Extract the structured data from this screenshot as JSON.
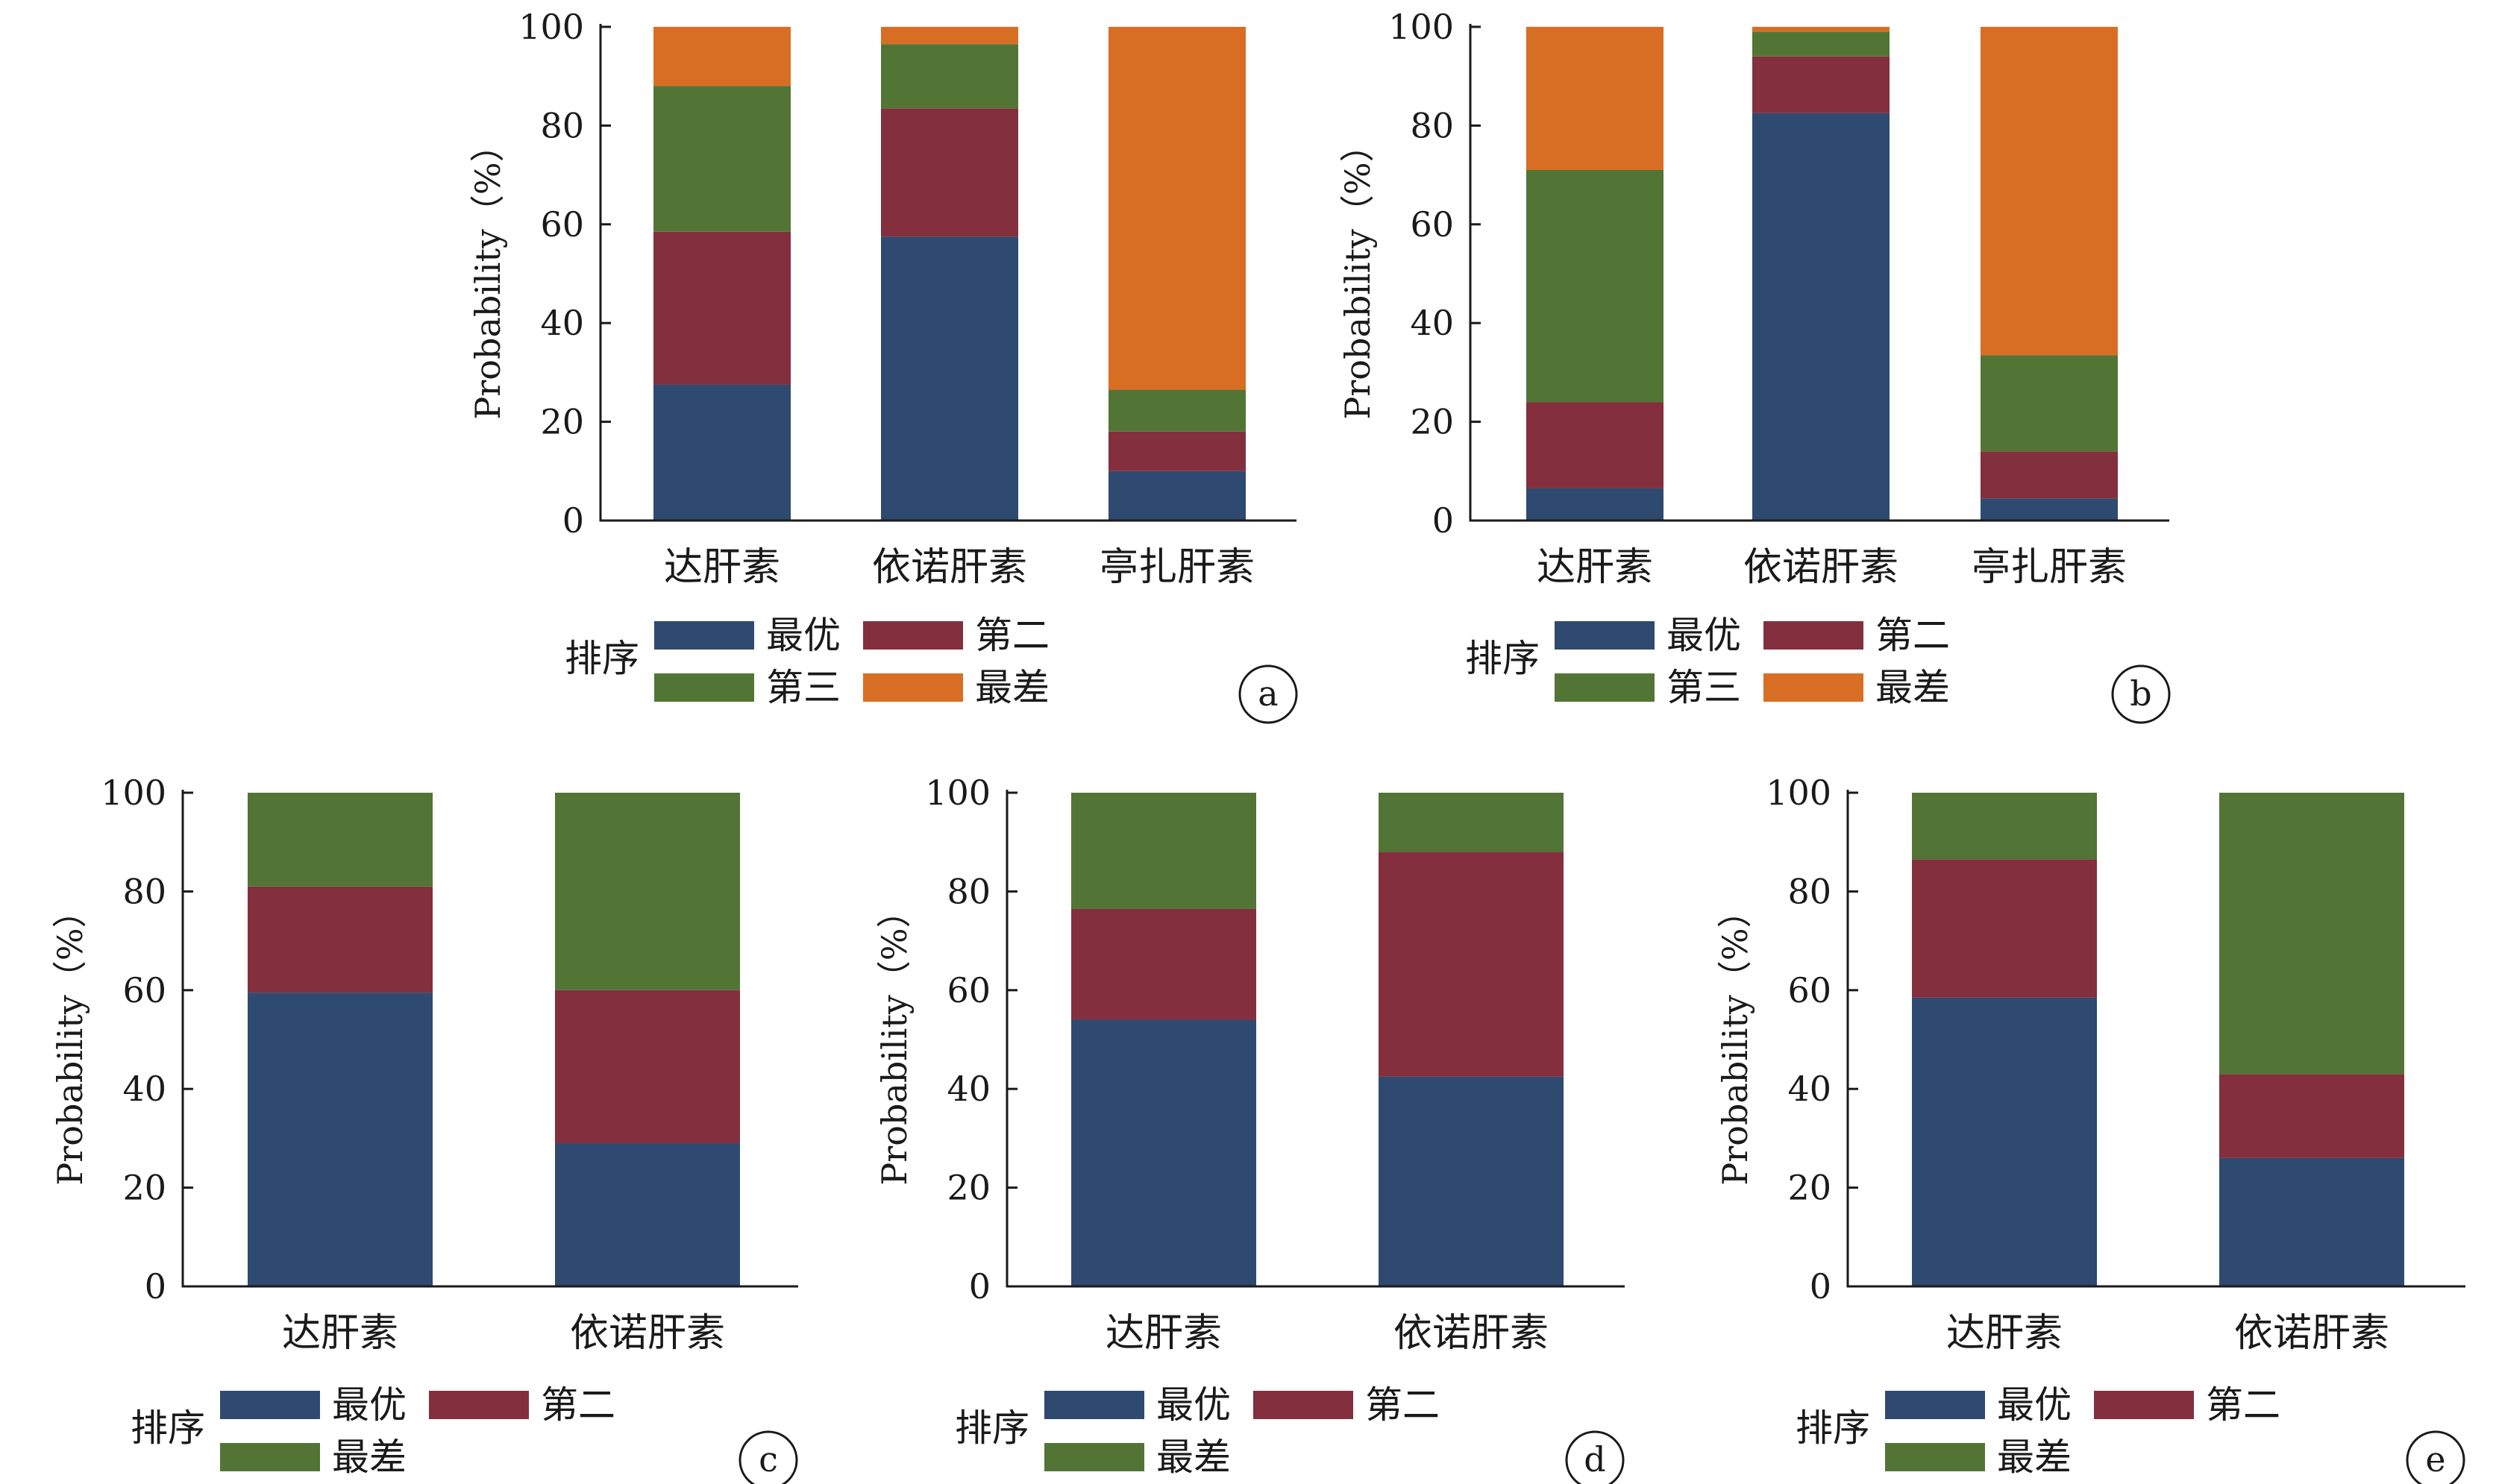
{
  "colors": {
    "best": "#2f4a70",
    "second": "#832f3e",
    "third": "#527536",
    "worst": "#d86e24",
    "axis": "#1a1a1a"
  },
  "chart_data": [
    {
      "type": "bar",
      "stacked": true,
      "panel_label": "a",
      "categories": [
        "达肝素",
        "依诺肝素",
        "亭扎肝素"
      ],
      "ylabel": "Probability（%）",
      "ylim": [
        0,
        100
      ],
      "yticks": [
        0,
        20,
        40,
        60,
        80,
        100
      ],
      "legend_title": "排序",
      "series": [
        {
          "name": "最优",
          "color": "#2f4a70",
          "values": [
            27.5,
            57.5,
            10.0
          ]
        },
        {
          "name": "第二",
          "color": "#832f3e",
          "values": [
            31.0,
            26.0,
            8.0
          ]
        },
        {
          "name": "第三",
          "color": "#527536",
          "values": [
            29.5,
            13.0,
            8.5
          ]
        },
        {
          "name": "最差",
          "color": "#d86e24",
          "values": [
            12.0,
            3.5,
            73.5
          ]
        }
      ]
    },
    {
      "type": "bar",
      "stacked": true,
      "panel_label": "b",
      "categories": [
        "达肝素",
        "依诺肝素",
        "亭扎肝素"
      ],
      "ylabel": "Probability（%）",
      "ylim": [
        0,
        100
      ],
      "yticks": [
        0,
        20,
        40,
        60,
        80,
        100
      ],
      "legend_title": "排序",
      "series": [
        {
          "name": "最优",
          "color": "#2f4a70",
          "values": [
            6.5,
            82.5,
            4.5
          ]
        },
        {
          "name": "第二",
          "color": "#832f3e",
          "values": [
            17.5,
            11.5,
            9.5
          ]
        },
        {
          "name": "第三",
          "color": "#527536",
          "values": [
            47.0,
            5.0,
            19.5
          ]
        },
        {
          "name": "最差",
          "color": "#d86e24",
          "values": [
            29.0,
            1.0,
            66.5
          ]
        }
      ]
    },
    {
      "type": "bar",
      "stacked": true,
      "panel_label": "c",
      "categories": [
        "达肝素",
        "依诺肝素"
      ],
      "ylabel": "Probability（%）",
      "ylim": [
        0,
        100
      ],
      "yticks": [
        0,
        20,
        40,
        60,
        80,
        100
      ],
      "legend_title": "排序",
      "series": [
        {
          "name": "最优",
          "color": "#2f4a70",
          "values": [
            59.5,
            29.0
          ]
        },
        {
          "name": "第二",
          "color": "#832f3e",
          "values": [
            21.5,
            31.0
          ]
        },
        {
          "name": "最差",
          "color": "#527536",
          "values": [
            19.0,
            40.0
          ]
        }
      ]
    },
    {
      "type": "bar",
      "stacked": true,
      "panel_label": "d",
      "categories": [
        "达肝素",
        "依诺肝素"
      ],
      "ylabel": "Probability（%）",
      "ylim": [
        0,
        100
      ],
      "yticks": [
        0,
        20,
        40,
        60,
        80,
        100
      ],
      "legend_title": "排序",
      "series": [
        {
          "name": "最优",
          "color": "#2f4a70",
          "values": [
            54.0,
            42.5
          ]
        },
        {
          "name": "第二",
          "color": "#832f3e",
          "values": [
            22.5,
            45.5
          ]
        },
        {
          "name": "最差",
          "color": "#527536",
          "values": [
            23.5,
            12.0
          ]
        }
      ]
    },
    {
      "type": "bar",
      "stacked": true,
      "panel_label": "e",
      "categories": [
        "达肝素",
        "依诺肝素"
      ],
      "ylabel": "Probability（%）",
      "ylim": [
        0,
        100
      ],
      "yticks": [
        0,
        20,
        40,
        60,
        80,
        100
      ],
      "legend_title": "排序",
      "series": [
        {
          "name": "最优",
          "color": "#2f4a70",
          "values": [
            58.5,
            26.0
          ]
        },
        {
          "name": "第二",
          "color": "#832f3e",
          "values": [
            28.0,
            17.0
          ]
        },
        {
          "name": "最差",
          "color": "#527536",
          "values": [
            13.5,
            57.0
          ]
        }
      ]
    }
  ]
}
